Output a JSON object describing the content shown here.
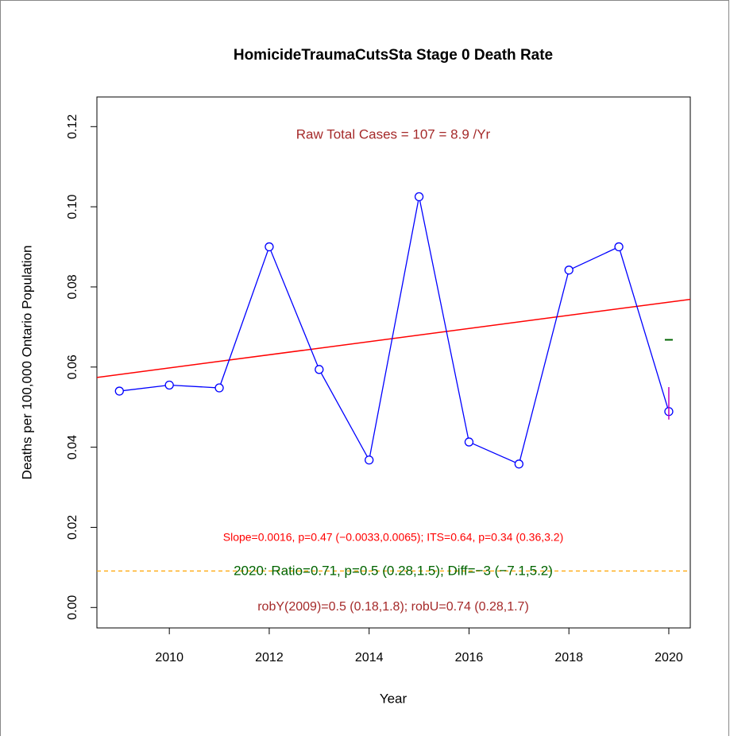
{
  "chart_data": {
    "type": "line",
    "title": "HomicideTraumaCutsSta Stage 0 Death Rate",
    "x_label": "Year",
    "y_label": "Deaths per 100,000 Ontario Population",
    "x": [
      2009,
      2010,
      2011,
      2012,
      2013,
      2014,
      2015,
      2016,
      2017,
      2018,
      2019,
      2020
    ],
    "series": [
      {
        "color": "#0000ff",
        "values": [
          0.054,
          0.0555,
          0.0548,
          0.09,
          0.0594,
          0.0368,
          0.1025,
          0.0413,
          0.0358,
          0.0842,
          0.09,
          0.0489
        ]
      }
    ],
    "trend_line": {
      "color": "#ff0000",
      "x": [
        2008.55,
        2020.43
      ],
      "values": [
        0.0574,
        0.0769
      ]
    },
    "reference_line": {
      "color": "#ffa500",
      "value": 0.0091
    },
    "expected_2020": {
      "color": "#006400",
      "x": 2020,
      "value": 0.0668
    },
    "interval_2020": {
      "color": "#c000c0",
      "x": 2020,
      "values": [
        0.0469,
        0.055
      ]
    },
    "annotations": [
      {
        "text": "Raw Total Cases = 107 = 8.9 /Yr",
        "color": "#a52a2a"
      },
      {
        "text": "Slope=0.0016, p=0.47 (−0.0033,0.0065);  ITS=0.64, p=0.34 (0.36,3.2)",
        "color": "#ff0000"
      },
      {
        "text": "2020:  Ratio=0.71, p=0.5 (0.28,1.5);  Diff=−3 (−7.1,5.2)",
        "color": "#006400"
      },
      {
        "text": "robY(2009)=0.5 (0.18,1.8); robU=0.74 (0.28,1.7)",
        "color": "#a52a2a"
      }
    ],
    "xlim": [
      2008.55,
      2020.43
    ],
    "ylim": [
      -0.0051,
      0.1274
    ],
    "xticks": [
      2010,
      2012,
      2014,
      2016,
      2018,
      2020
    ],
    "yticks": [
      {
        "value": 0,
        "label": "0.00"
      },
      {
        "value": 0.02,
        "label": "0.02"
      },
      {
        "value": 0.04,
        "label": "0.04"
      },
      {
        "value": 0.06,
        "label": "0.06"
      },
      {
        "value": 0.08,
        "label": "0.08"
      },
      {
        "value": 0.1,
        "label": "0.10"
      },
      {
        "value": 0.12,
        "label": "0.12"
      }
    ]
  }
}
